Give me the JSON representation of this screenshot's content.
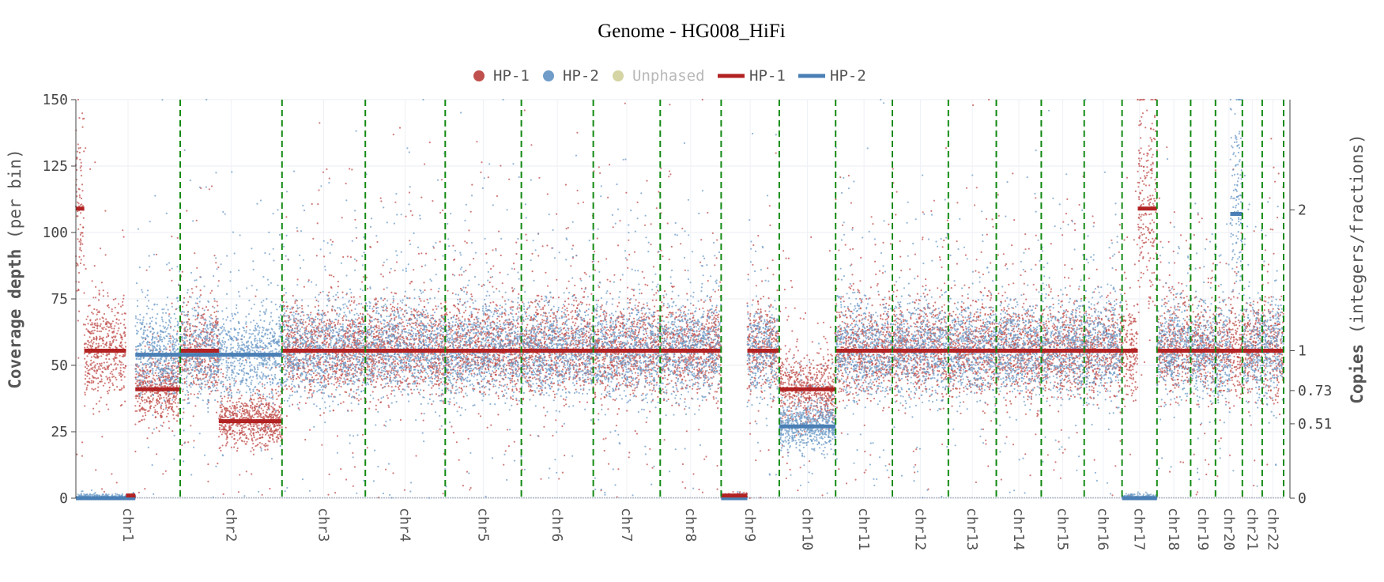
{
  "chart_data": {
    "type": "scatter",
    "title": "Genome - HG008_HiFi",
    "ylabel_bold": "Coverage depth",
    "ylabel_rest": " (per bin)",
    "y2label_bold": "Copies",
    "y2label_rest": " (integers/fractions)",
    "ylim": [
      0,
      150
    ],
    "yticks": [
      0,
      25,
      50,
      75,
      100,
      125,
      150
    ],
    "y2ticks": [
      {
        "value": 0,
        "label": "0"
      },
      {
        "value": 28,
        "label": "0.51"
      },
      {
        "value": 40.5,
        "label": "0.73"
      },
      {
        "value": 55.5,
        "label": "1"
      },
      {
        "value": 108.5,
        "label": "2"
      }
    ],
    "grid": true,
    "legend_position": "top-center",
    "legend": [
      {
        "label": "HP-1",
        "kind": "dot",
        "color": "#c0504d"
      },
      {
        "label": "HP-2",
        "kind": "dot",
        "color": "#6f9cc8"
      },
      {
        "label": "Unphased",
        "kind": "dot",
        "color": "#d4d4a4",
        "faded": true
      },
      {
        "label": "HP-1",
        "kind": "line",
        "color": "#b22222"
      },
      {
        "label": "HP-2",
        "kind": "line",
        "color": "#4a7fb5"
      }
    ],
    "colors": {
      "hp1_points": "#c0504d",
      "hp2_points": "#6f9cc8",
      "hp1_segment": "#b22222",
      "hp2_segment": "#4a7fb5",
      "boundary": "#138a13",
      "title": "#ff0000"
    },
    "chromosomes": [
      {
        "name": "chr1",
        "length": 248
      },
      {
        "name": "chr2",
        "length": 242
      },
      {
        "name": "chr3",
        "length": 198
      },
      {
        "name": "chr4",
        "length": 190
      },
      {
        "name": "chr5",
        "length": 181
      },
      {
        "name": "chr6",
        "length": 171
      },
      {
        "name": "chr7",
        "length": 159
      },
      {
        "name": "chr8",
        "length": 145
      },
      {
        "name": "chr9",
        "length": 138
      },
      {
        "name": "chr10",
        "length": 134
      },
      {
        "name": "chr11",
        "length": 135
      },
      {
        "name": "chr12",
        "length": 133
      },
      {
        "name": "chr13",
        "length": 114
      },
      {
        "name": "chr14",
        "length": 107
      },
      {
        "name": "chr15",
        "length": 102
      },
      {
        "name": "chr16",
        "length": 90
      },
      {
        "name": "chr17",
        "length": 83
      },
      {
        "name": "chr18",
        "length": 80
      },
      {
        "name": "chr19",
        "length": 59
      },
      {
        "name": "chr20",
        "length": 64
      },
      {
        "name": "chr21",
        "length": 47
      },
      {
        "name": "chr22",
        "length": 51
      }
    ],
    "segments": [
      {
        "chr": 1,
        "start": 0.0,
        "end": 0.08,
        "hp1": 109,
        "hp2": 0
      },
      {
        "chr": 1,
        "start": 0.08,
        "end": 0.48,
        "hp1": 55.5,
        "hp2": 0
      },
      {
        "chr": 1,
        "start": 0.48,
        "end": 0.57,
        "hp1": 1,
        "hp2": 0
      },
      {
        "chr": 1,
        "start": 0.57,
        "end": 1.0,
        "hp1": 41,
        "hp2": 54
      },
      {
        "chr": 2,
        "start": 0.0,
        "end": 0.38,
        "hp1": 55.5,
        "hp2": 54
      },
      {
        "chr": 2,
        "start": 0.38,
        "end": 1.0,
        "hp1": 29,
        "hp2": 54
      },
      {
        "chr": 3,
        "start": 0.0,
        "end": 1.0,
        "hp1": 55.5,
        "hp2": 55.5
      },
      {
        "chr": 4,
        "start": 0.0,
        "end": 1.0,
        "hp1": 55.5,
        "hp2": 55.5
      },
      {
        "chr": 5,
        "start": 0.0,
        "end": 1.0,
        "hp1": 55.5,
        "hp2": 55.5
      },
      {
        "chr": 6,
        "start": 0.0,
        "end": 1.0,
        "hp1": 55.5,
        "hp2": 55.5
      },
      {
        "chr": 7,
        "start": 0.0,
        "end": 1.0,
        "hp1": 55.5,
        "hp2": 55.5
      },
      {
        "chr": 8,
        "start": 0.0,
        "end": 1.0,
        "hp1": 55.5,
        "hp2": 55.5
      },
      {
        "chr": 9,
        "start": 0.0,
        "end": 0.45,
        "hp1": 1,
        "hp2": 0
      },
      {
        "chr": 9,
        "start": 0.45,
        "end": 1.0,
        "hp1": 55.5,
        "hp2": 55.5
      },
      {
        "chr": 10,
        "start": 0.0,
        "end": 1.0,
        "hp1": 41,
        "hp2": 27
      },
      {
        "chr": 11,
        "start": 0.0,
        "end": 1.0,
        "hp1": 55.5,
        "hp2": 55.5
      },
      {
        "chr": 12,
        "start": 0.0,
        "end": 1.0,
        "hp1": 55.5,
        "hp2": 55.5
      },
      {
        "chr": 13,
        "start": 0.0,
        "end": 1.0,
        "hp1": 55.5,
        "hp2": 55.5
      },
      {
        "chr": 14,
        "start": 0.0,
        "end": 1.0,
        "hp1": 55.5,
        "hp2": 55.5
      },
      {
        "chr": 15,
        "start": 0.0,
        "end": 1.0,
        "hp1": 55.5,
        "hp2": 55.5
      },
      {
        "chr": 16,
        "start": 0.0,
        "end": 1.0,
        "hp1": 55.5,
        "hp2": 55.5
      },
      {
        "chr": 17,
        "start": 0.0,
        "end": 0.45,
        "hp1": 55.5,
        "hp2": 0
      },
      {
        "chr": 17,
        "start": 0.45,
        "end": 1.0,
        "hp1": 109,
        "hp2": 0
      },
      {
        "chr": 18,
        "start": 0.0,
        "end": 1.0,
        "hp1": 55.5,
        "hp2": 55.5
      },
      {
        "chr": 19,
        "start": 0.0,
        "end": 1.0,
        "hp1": 55.5,
        "hp2": 55.5
      },
      {
        "chr": 20,
        "start": 0.0,
        "end": 0.55,
        "hp1": 55.5,
        "hp2": 55.5
      },
      {
        "chr": 20,
        "start": 0.55,
        "end": 1.0,
        "hp1": 55.5,
        "hp2": 107
      },
      {
        "chr": 21,
        "start": 0.0,
        "end": 1.0,
        "hp1": 55.5,
        "hp2": 55.5
      },
      {
        "chr": 22,
        "start": 0.0,
        "end": 1.0,
        "hp1": 55.5,
        "hp2": 55.5
      }
    ]
  }
}
